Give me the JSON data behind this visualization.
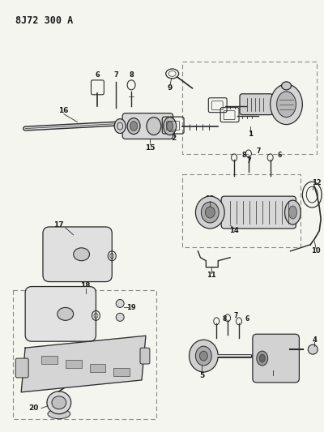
{
  "title": "8J72 300 A",
  "bg_color": "#f5f5f0",
  "line_color": "#2a2a2a",
  "label_color": "#1a1a1a",
  "fig_width": 4.0,
  "fig_height": 5.33,
  "dpi": 100,
  "title_fontsize": 8.5,
  "label_fontsize": 6.5,
  "lw": 0.9
}
